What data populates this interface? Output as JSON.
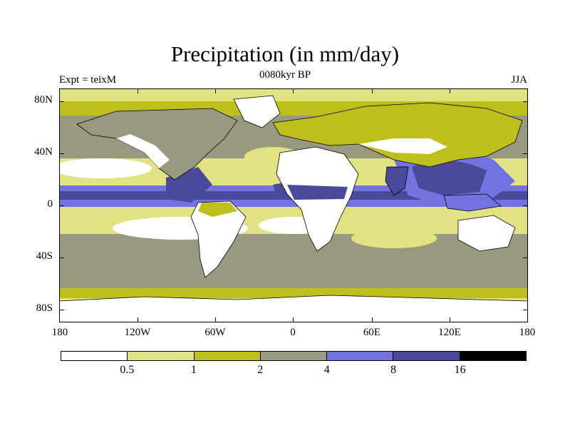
{
  "title": "Precipitation (in mm/day)",
  "subtitle": "0080kyr BP",
  "left_label": "Expt = teixM",
  "right_label": "JJA",
  "axes": {
    "y_ticks": [
      "80N",
      "40N",
      "0",
      "40S",
      "80S"
    ],
    "x_ticks": [
      "180",
      "120W",
      "60W",
      "0",
      "60E",
      "120E",
      "180"
    ]
  },
  "legend": {
    "colors": [
      "#ffffff",
      "#e2e283",
      "#bebe1c",
      "#999980",
      "#7272e0",
      "#4a4a9a",
      "#000000"
    ],
    "labels": [
      "0.5",
      "1",
      "2",
      "4",
      "8",
      "16"
    ]
  },
  "colors": {
    "dry": "#ffffff",
    "light": "#e2e283",
    "olive": "#bebe1c",
    "grey": "#999980",
    "blue": "#7272e0",
    "dark_blue": "#4a4a9a",
    "black": "#000000"
  }
}
